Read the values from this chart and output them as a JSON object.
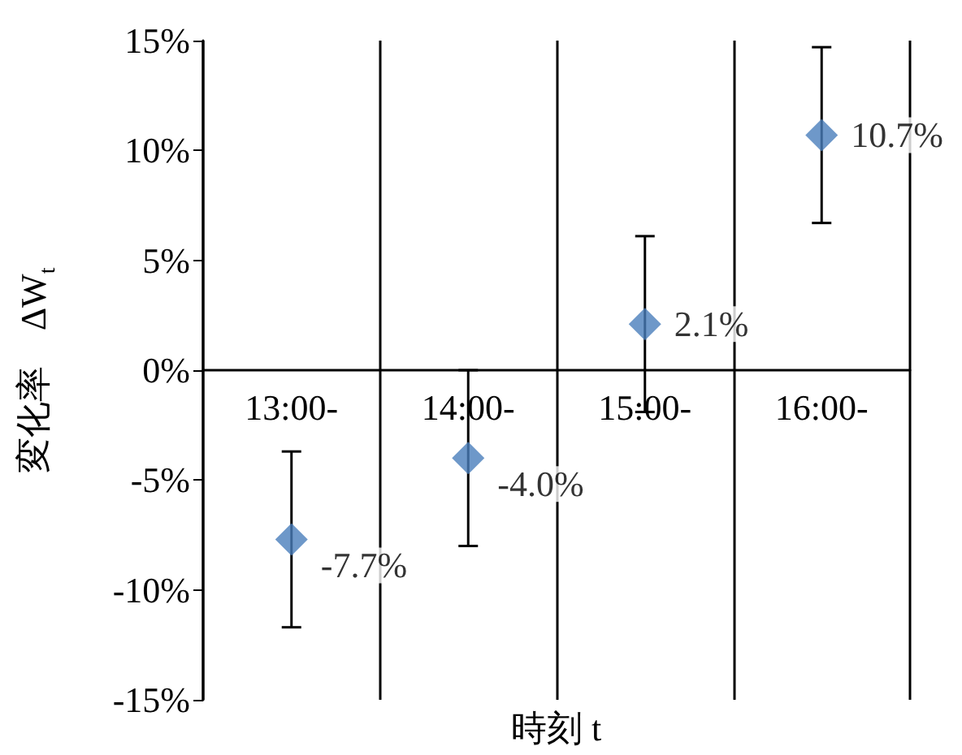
{
  "chart_data": {
    "type": "scatter",
    "xlabel": "時刻 t",
    "ylabel": "変化率　ΔW$_{t}$",
    "categories": [
      "13:00-",
      "14:00-",
      "15:00-",
      "16:00-"
    ],
    "series": [
      {
        "color": "#4a7ebb",
        "values": [
          -7.7,
          -4.0,
          2.1,
          10.7
        ],
        "errors": [
          4,
          4,
          4,
          4
        ],
        "value_labels": [
          "-7.7%",
          "-4.0%",
          "2.1%",
          "10.7%"
        ]
      }
    ],
    "ylim": [
      -15,
      15
    ],
    "yticks": [
      {
        "value": -15,
        "label": "-15%"
      },
      {
        "value": -10,
        "label": "-10%"
      },
      {
        "value": -5,
        "label": "-5%"
      },
      {
        "value": 0,
        "label": "0%"
      },
      {
        "value": 5,
        "label": "5%"
      },
      {
        "value": 10,
        "label": "10%"
      },
      {
        "value": 15,
        "label": "15%"
      }
    ],
    "grid": "x",
    "marker": "diamond"
  }
}
